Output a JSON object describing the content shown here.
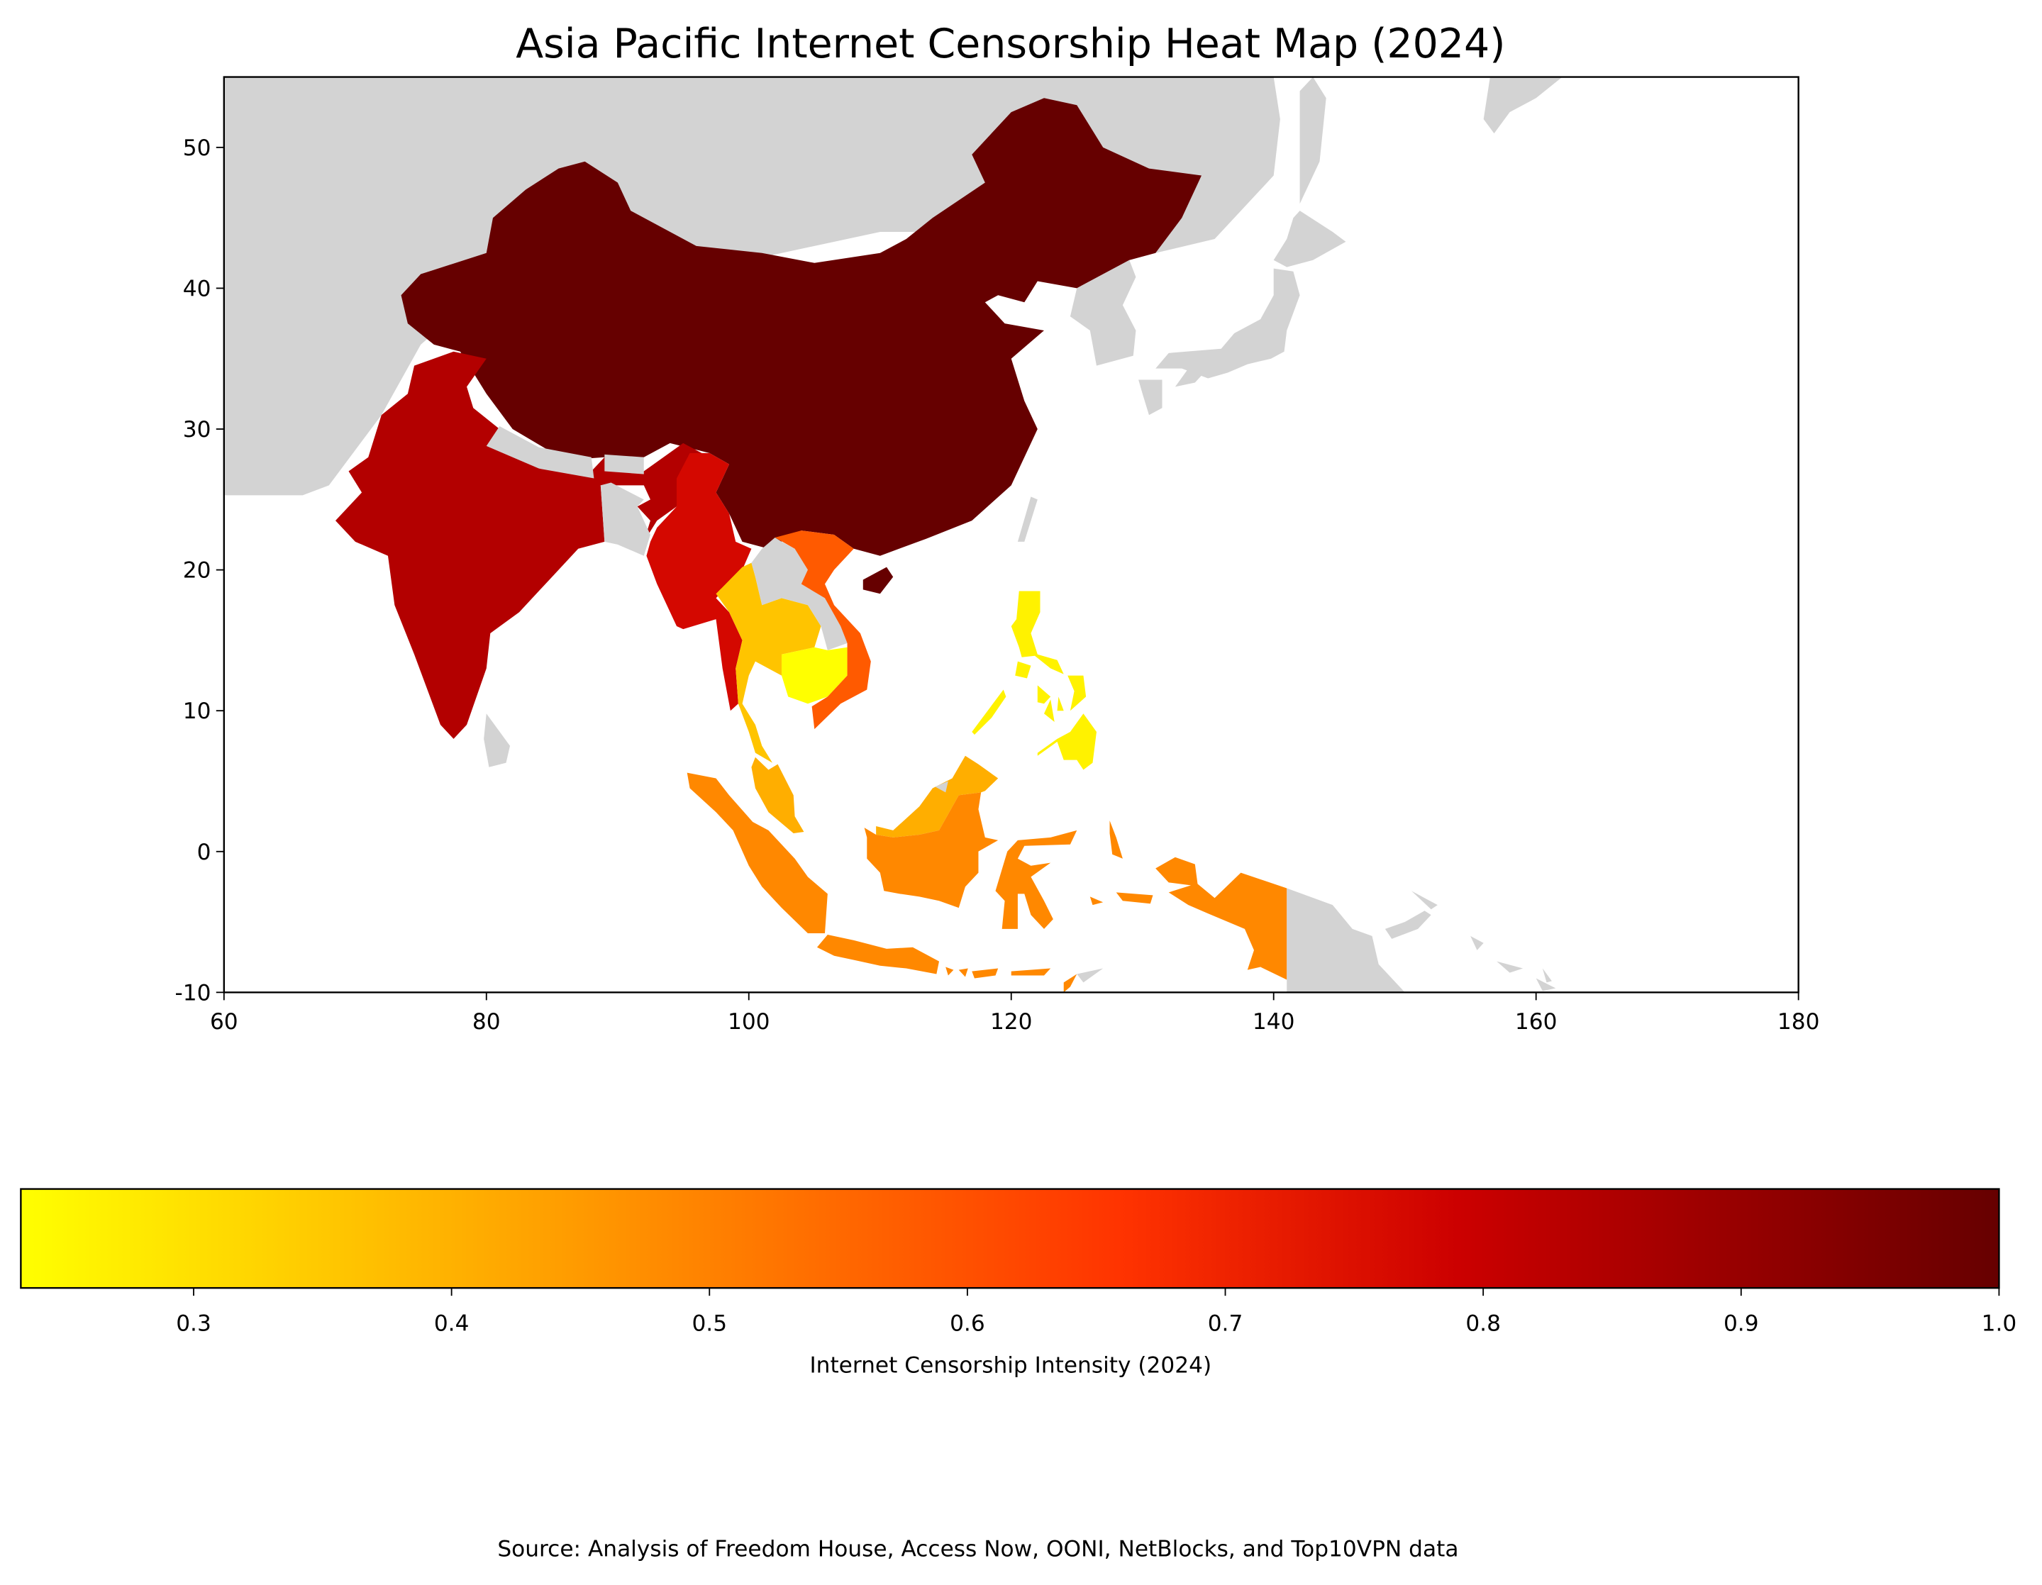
{
  "chart_data": {
    "type": "choropleth",
    "title": "Asia Pacific Internet Censorship Heat Map (2024)",
    "xlim": [
      60,
      180
    ],
    "ylim": [
      -10,
      55
    ],
    "x_ticks": [
      "60",
      "80",
      "100",
      "120",
      "140",
      "160",
      "180"
    ],
    "y_ticks": [
      "-10",
      "0",
      "10",
      "20",
      "30",
      "40",
      "50"
    ],
    "no_data_color": "#d3d3d3",
    "countries": [
      {
        "name": "China",
        "value": 1.0,
        "color": "#660000"
      },
      {
        "name": "India",
        "value": 0.84,
        "color": "#b30000"
      },
      {
        "name": "Myanmar",
        "value": 0.77,
        "color": "#d40800"
      },
      {
        "name": "Vietnam",
        "value": 0.6,
        "color": "#ff5a00"
      },
      {
        "name": "Indonesia",
        "value": 0.49,
        "color": "#ff8800"
      },
      {
        "name": "Malaysia",
        "value": 0.41,
        "color": "#ffae00"
      },
      {
        "name": "Thailand",
        "value": 0.36,
        "color": "#ffc400"
      },
      {
        "name": "Philippines",
        "value": 0.26,
        "color": "#fff200"
      },
      {
        "name": "Cambodia",
        "value": 0.233,
        "color": "#ffff00"
      }
    ],
    "colorbar": {
      "label": "Internet Censorship Intensity (2024)",
      "range": [
        0.233,
        1.0
      ],
      "ticks": [
        "0.3",
        "0.4",
        "0.5",
        "0.6",
        "0.7",
        "0.8",
        "0.9",
        "1.0"
      ],
      "stops": [
        {
          "value": 0.233,
          "color": "#ffff00"
        },
        {
          "value": 0.45,
          "color": "#ff9a00"
        },
        {
          "value": 0.66,
          "color": "#ff3300"
        },
        {
          "value": 0.79,
          "color": "#cc0000"
        },
        {
          "value": 1.0,
          "color": "#660000"
        }
      ]
    },
    "source": "Source: Analysis of Freedom House, Access Now, OONI, NetBlocks, and Top10VPN data"
  }
}
